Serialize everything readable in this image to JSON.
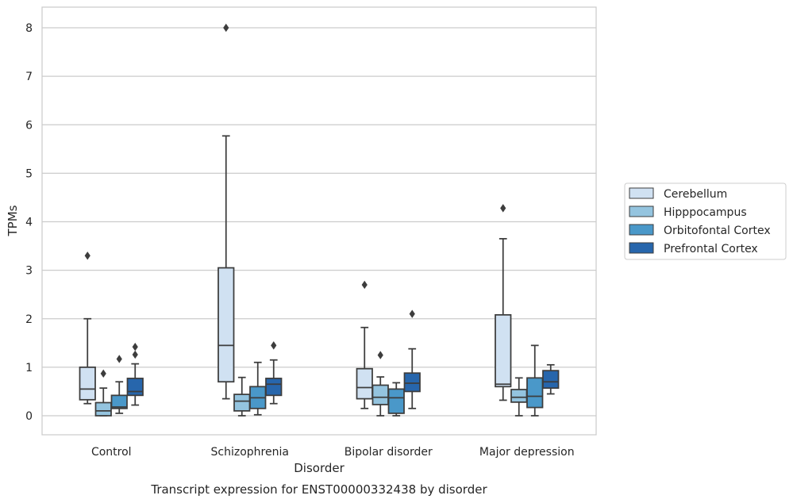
{
  "chart_data": {
    "type": "box",
    "caption": "Transcript expression for ENST00000332438 by disorder",
    "xlabel": "Disorder",
    "ylabel": "TPMs",
    "ylim": [
      -0.38,
      8.42
    ],
    "yticks": [
      0,
      1,
      2,
      3,
      4,
      5,
      6,
      7,
      8
    ],
    "grid": "horizontal",
    "legend_position": "right",
    "categories": [
      "Control",
      "Schizophrenia",
      "Bipolar disorder",
      "Major depression"
    ],
    "series": [
      {
        "name": "Cerebellum",
        "color": "#d0e1f2",
        "boxes": [
          {
            "whislo": 0.25,
            "q1": 0.33,
            "med": 0.55,
            "q3": 1.0,
            "whishi": 2.0,
            "fliers": [
              3.3
            ]
          },
          {
            "whislo": 0.35,
            "q1": 0.7,
            "med": 1.45,
            "q3": 3.05,
            "whishi": 5.77,
            "fliers": [
              8.0
            ]
          },
          {
            "whislo": 0.15,
            "q1": 0.35,
            "med": 0.58,
            "q3": 0.97,
            "whishi": 1.82,
            "fliers": [
              2.7
            ]
          },
          {
            "whislo": 0.32,
            "q1": 0.6,
            "med": 0.65,
            "q3": 2.08,
            "whishi": 3.65,
            "fliers": [
              4.28
            ]
          }
        ]
      },
      {
        "name": "Hipppocampus",
        "color": "#94c4df",
        "boxes": [
          {
            "whislo": 0.0,
            "q1": 0.0,
            "med": 0.1,
            "q3": 0.27,
            "whishi": 0.57,
            "fliers": [
              0.87
            ]
          },
          {
            "whislo": 0.0,
            "q1": 0.1,
            "med": 0.3,
            "q3": 0.44,
            "whishi": 0.79,
            "fliers": []
          },
          {
            "whislo": 0.0,
            "q1": 0.23,
            "med": 0.38,
            "q3": 0.63,
            "whishi": 0.8,
            "fliers": [
              1.25
            ]
          },
          {
            "whislo": 0.0,
            "q1": 0.28,
            "med": 0.38,
            "q3": 0.54,
            "whishi": 0.78,
            "fliers": []
          }
        ]
      },
      {
        "name": "Orbitofontal Cortex",
        "color": "#4a98c9",
        "boxes": [
          {
            "whislo": 0.05,
            "q1": 0.15,
            "med": 0.18,
            "q3": 0.42,
            "whishi": 0.7,
            "fliers": [
              1.17
            ]
          },
          {
            "whislo": 0.02,
            "q1": 0.15,
            "med": 0.37,
            "q3": 0.6,
            "whishi": 1.1,
            "fliers": []
          },
          {
            "whislo": 0.0,
            "q1": 0.05,
            "med": 0.37,
            "q3": 0.55,
            "whishi": 0.68,
            "fliers": []
          },
          {
            "whislo": 0.0,
            "q1": 0.17,
            "med": 0.4,
            "q3": 0.78,
            "whishi": 1.45,
            "fliers": []
          }
        ]
      },
      {
        "name": "Prefrontal Cortex",
        "color": "#2766ac",
        "boxes": [
          {
            "whislo": 0.22,
            "q1": 0.42,
            "med": 0.5,
            "q3": 0.77,
            "whishi": 1.07,
            "fliers": [
              1.26,
              1.42
            ]
          },
          {
            "whislo": 0.25,
            "q1": 0.42,
            "med": 0.65,
            "q3": 0.77,
            "whishi": 1.15,
            "fliers": [
              1.45
            ]
          },
          {
            "whislo": 0.15,
            "q1": 0.5,
            "med": 0.67,
            "q3": 0.88,
            "whishi": 1.38,
            "fliers": [
              2.1
            ]
          },
          {
            "whislo": 0.45,
            "q1": 0.57,
            "med": 0.7,
            "q3": 0.93,
            "whishi": 1.05,
            "fliers": []
          }
        ]
      }
    ]
  }
}
